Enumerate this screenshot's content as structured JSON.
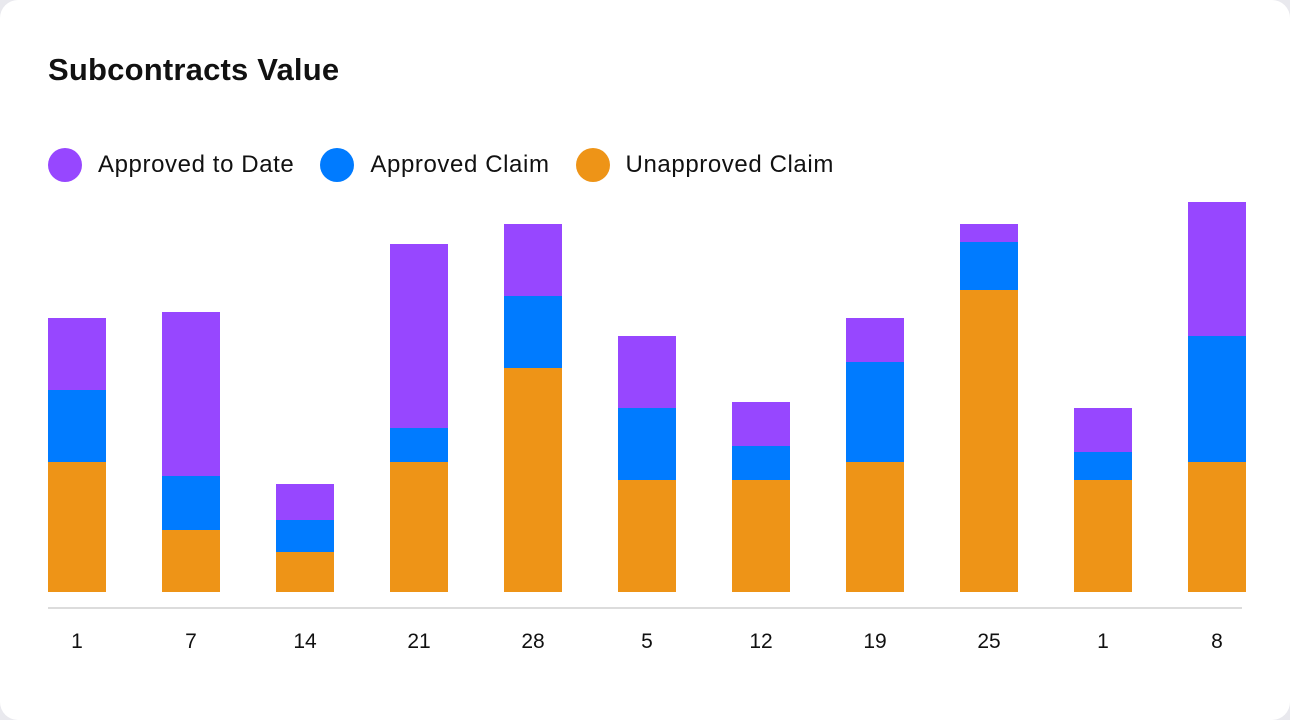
{
  "chart_data": {
    "type": "bar",
    "stacked": true,
    "title": "Subcontracts Value",
    "categories": [
      "1",
      "7",
      "14",
      "21",
      "28",
      "5",
      "12",
      "19",
      "25",
      "1",
      "8"
    ],
    "series": [
      {
        "name": "Unapproved Claim",
        "color": "#EE9417",
        "values": [
          130,
          62,
          40,
          130,
          224,
          112,
          112,
          130,
          302,
          112,
          130
        ]
      },
      {
        "name": "Approved Claim",
        "color": "#007BFF",
        "values": [
          72,
          54,
          32,
          34,
          72,
          72,
          34,
          100,
          48,
          28,
          126
        ]
      },
      {
        "name": "Approved to Date",
        "color": "#9747FF",
        "values": [
          72,
          164,
          36,
          184,
          72,
          72,
          44,
          44,
          18,
          44,
          134
        ]
      }
    ],
    "legend_order": [
      "Approved to Date",
      "Approved Claim",
      "Unapproved Claim"
    ],
    "legend_position": "top-left",
    "grid": false,
    "ylim": [
      0,
      400
    ]
  }
}
